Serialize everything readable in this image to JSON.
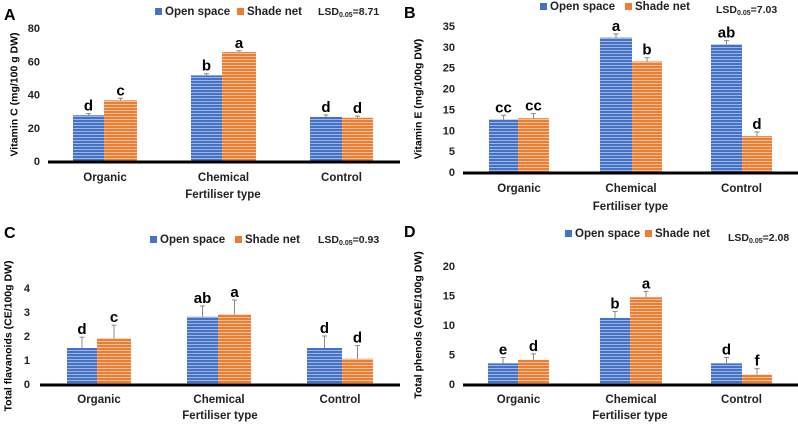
{
  "chart_data": [
    {
      "type": "bar",
      "panel_label": "A",
      "categories": [
        "Organic",
        "Chemical",
        "Control"
      ],
      "xlabel": "Fertiliser type",
      "ylabel": "Vitamin C (mg/100 g DW)",
      "ylim": [
        0,
        80
      ],
      "yticks": [
        0,
        20,
        40,
        60,
        80
      ],
      "lsd_text": "LSD",
      "lsd_sub": "0.05",
      "lsd_value": "=8.71",
      "series": [
        {
          "name": "Open space",
          "values": [
            27.5,
            51.5,
            26.5
          ],
          "errors": [
            1,
            1,
            1.2
          ],
          "letters": [
            "d",
            "b",
            "d"
          ]
        },
        {
          "name": "Shade net",
          "values": [
            36.5,
            65.5,
            26
          ],
          "errors": [
            1.2,
            0.8,
            1
          ],
          "letters": [
            "c",
            "a",
            "d"
          ]
        }
      ]
    },
    {
      "type": "bar",
      "panel_label": "B",
      "categories": [
        "Organic",
        "Chemical",
        "Control"
      ],
      "xlabel": "Fertiliser type",
      "ylabel": "Vitamin E (mg/100g DW)",
      "ylim": [
        0,
        35
      ],
      "yticks": [
        0,
        5,
        10,
        15,
        20,
        25,
        30,
        35
      ],
      "lsd_text": "LSD",
      "lsd_sub": "0.05",
      "lsd_value": "=7.03",
      "series": [
        {
          "name": "Open space",
          "values": [
            12.6,
            32.2,
            30.6
          ],
          "errors": [
            1,
            0.9,
            0.9
          ],
          "letters": [
            "cc",
            "a",
            "ab"
          ]
        },
        {
          "name": "Shade net",
          "values": [
            12.9,
            26.5,
            8.6
          ],
          "errors": [
            1.1,
            0.9,
            1
          ],
          "letters": [
            "cc",
            "b",
            "d"
          ]
        }
      ]
    },
    {
      "type": "bar",
      "panel_label": "C",
      "categories": [
        "Organic",
        "Chemical",
        "Control"
      ],
      "xlabel": "Fertiliser type",
      "ylabel": "Total flavanoids (CE/100g DW)",
      "ylim": [
        0,
        4
      ],
      "yticks": [
        0,
        1,
        2,
        3,
        4
      ],
      "lsd_text": "LSD",
      "lsd_sub": "0.05",
      "lsd_value": "=0.93",
      "series": [
        {
          "name": "Open space",
          "values": [
            1.5,
            2.8,
            1.5
          ],
          "errors": [
            0.45,
            0.45,
            0.5
          ],
          "letters": [
            "d",
            "ab",
            "d"
          ]
        },
        {
          "name": "Shade net",
          "values": [
            1.9,
            2.9,
            1.05
          ],
          "errors": [
            0.55,
            0.6,
            0.55
          ],
          "letters": [
            "c",
            "a",
            "d"
          ]
        }
      ]
    },
    {
      "type": "bar",
      "panel_label": "D",
      "categories": [
        "Organic",
        "Chemical",
        "Control"
      ],
      "xlabel": "Fertiliser type",
      "ylabel": "Total phenols (GAE/100g DW)",
      "ylim": [
        0,
        20
      ],
      "yticks": [
        0,
        5,
        10,
        15,
        20
      ],
      "lsd_text": "LSD",
      "lsd_sub": "0.05",
      "lsd_value": "=2.08",
      "series": [
        {
          "name": "Open space",
          "values": [
            3.5,
            11.2,
            3.5
          ],
          "errors": [
            1,
            1.1,
            1
          ],
          "letters": [
            "e",
            "b",
            "d"
          ]
        },
        {
          "name": "Shade net",
          "values": [
            4.1,
            14.7,
            1.6
          ],
          "errors": [
            1,
            1,
            1
          ],
          "letters": [
            "d",
            "a",
            "f"
          ]
        }
      ]
    }
  ],
  "colors": {
    "open_space": "#4472c4",
    "shade_net": "#ed7d31",
    "axis": "#000000"
  }
}
